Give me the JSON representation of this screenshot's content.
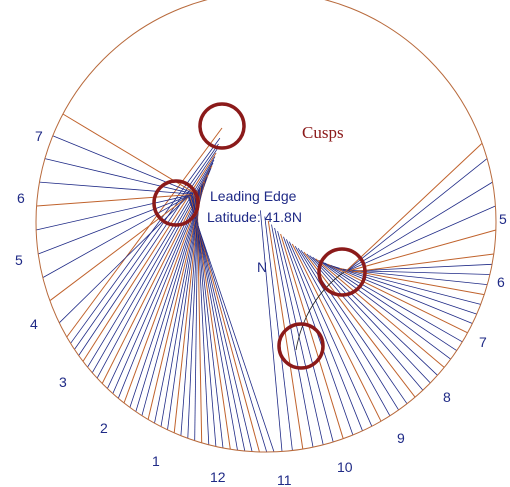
{
  "diagram": {
    "cusps_label": "Cusps",
    "leading_edge_label": "Leading Edge",
    "latitude_label": "Latitude: 41.8N",
    "north_label": "N",
    "hour_labels_left": [
      "7",
      "6",
      "5",
      "4",
      "3",
      "2",
      "1"
    ],
    "hour_labels_bottom": [
      "12",
      "11",
      "10",
      "9",
      "8"
    ],
    "hour_labels_right": [
      "5",
      "6",
      "7"
    ],
    "colors": {
      "hour_line": "#c0622c",
      "minor_line": "#1f2a86",
      "circle": "#b86a3c",
      "cusp_marker": "#8b1a1a",
      "label": "#1f2a86"
    }
  }
}
